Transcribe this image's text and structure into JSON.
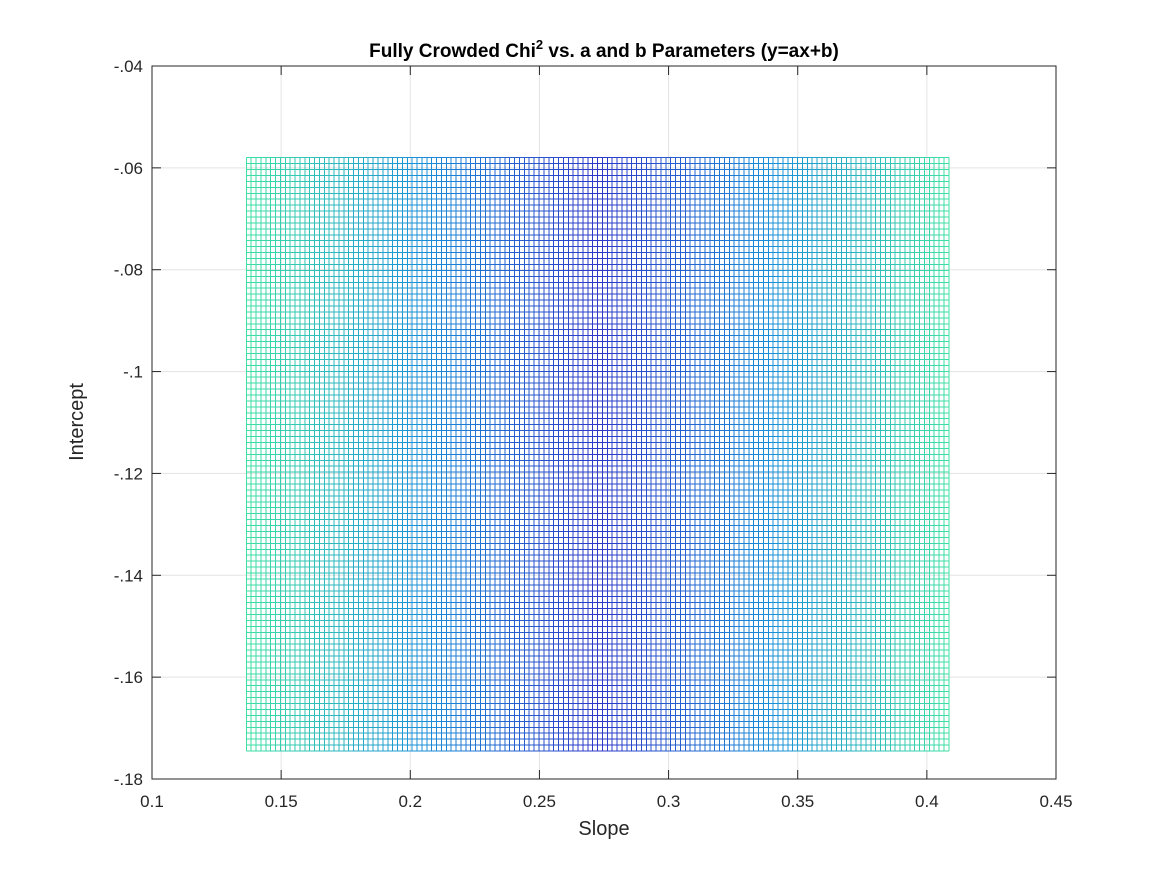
{
  "chart_data": {
    "type": "heatmap",
    "title": {
      "prefix": "Fully Crowded Chi",
      "superscript": "2",
      "suffix": " vs. a and b Parameters (y=ax+b)"
    },
    "xlabel": "Slope",
    "ylabel": "Intercept",
    "xlim": [
      0.1,
      0.45
    ],
    "ylim": [
      -0.18,
      -0.04
    ],
    "xticks": [
      0.1,
      0.15,
      0.2,
      0.25,
      0.3,
      0.35,
      0.4,
      0.45
    ],
    "yticks": [
      -0.18,
      -0.16,
      -0.14,
      -0.12,
      -0.1,
      -0.08,
      -0.06,
      -0.04
    ],
    "grid": true,
    "surface": {
      "style": "mesh",
      "colormap": "parula",
      "x_range": [
        0.1365,
        0.4085
      ],
      "y_range": [
        -0.1745,
        -0.058
      ],
      "x_lines": 145,
      "y_lines": 101,
      "minimum_slope": 0.2725,
      "colors": [
        "#3EE0A4",
        "#1A8FD8",
        "#2E37C8"
      ]
    }
  }
}
